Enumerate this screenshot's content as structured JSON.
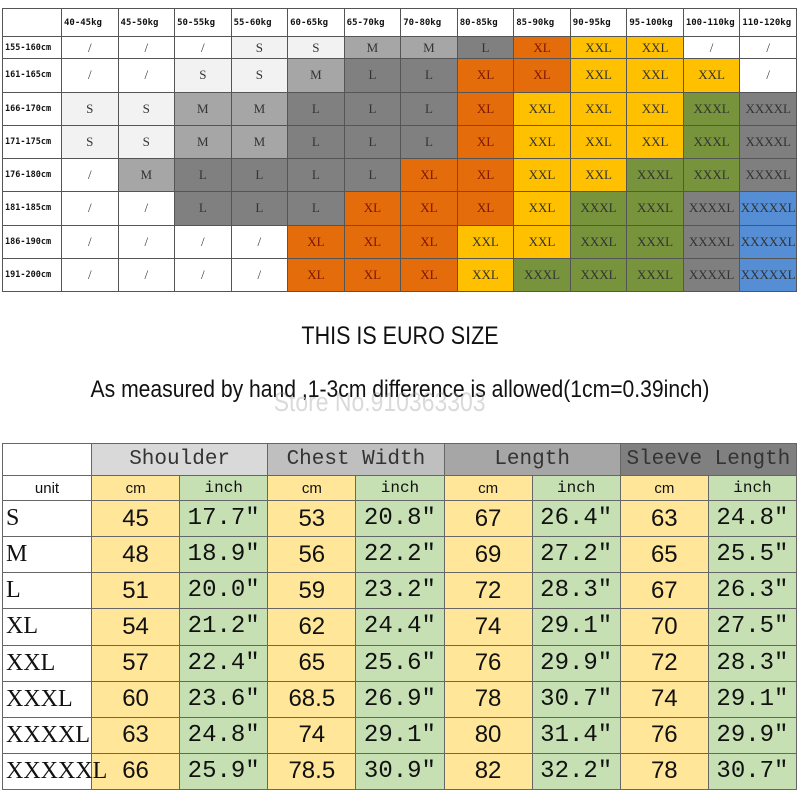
{
  "size_by_height_weight": {
    "weights": [
      "40-45kg",
      "45-50kg",
      "50-55kg",
      "55-60kg",
      "60-65kg",
      "65-70kg",
      "70-80kg",
      "80-85kg",
      "85-90kg",
      "90-95kg",
      "95-100kg",
      "100-110kg",
      "110-120kg"
    ],
    "rows": [
      {
        "height": "155-160cm",
        "cells": [
          "/",
          "/",
          "/",
          "S",
          "S",
          "M",
          "M",
          "L",
          "XL",
          "XXL",
          "XXL",
          "/",
          "/"
        ]
      },
      {
        "height": "161-165cm",
        "cells": [
          "/",
          "/",
          "S",
          "S",
          "M",
          "L",
          "L",
          "XL",
          "XL",
          "XXL",
          "XXL",
          "XXL",
          "/"
        ]
      },
      {
        "height": "166-170cm",
        "cells": [
          "S",
          "S",
          "M",
          "M",
          "L",
          "L",
          "L",
          "XL",
          "XXL",
          "XXL",
          "XXL",
          "XXXL",
          "XXXXL"
        ]
      },
      {
        "height": "171-175cm",
        "cells": [
          "S",
          "S",
          "M",
          "M",
          "L",
          "L",
          "L",
          "XL",
          "XXL",
          "XXL",
          "XXL",
          "XXXL",
          "XXXXL"
        ]
      },
      {
        "height": "176-180cm",
        "cells": [
          "/",
          "M",
          "L",
          "L",
          "L",
          "L",
          "XL",
          "XL",
          "XXL",
          "XXL",
          "XXXL",
          "XXXL",
          "XXXXL"
        ]
      },
      {
        "height": "181-185cm",
        "cells": [
          "/",
          "/",
          "L",
          "L",
          "L",
          "XL",
          "XL",
          "XL",
          "XXL",
          "XXXL",
          "XXXL",
          "XXXXL",
          "XXXXXL"
        ]
      },
      {
        "height": "186-190cm",
        "cells": [
          "/",
          "/",
          "/",
          "/",
          "XL",
          "XL",
          "XL",
          "XXL",
          "XXL",
          "XXXL",
          "XXXL",
          "XXXXL",
          "XXXXXL"
        ]
      },
      {
        "height": "191-200cm",
        "cells": [
          "/",
          "/",
          "/",
          "/",
          "XL",
          "XL",
          "XL",
          "XXL",
          "XXXL",
          "XXXL",
          "XXXL",
          "XXXXL",
          "XXXXXL"
        ]
      }
    ],
    "size_colors": {
      "/": "#ffffff",
      "S": "#f2f2f2",
      "M": "#a6a6a6",
      "L": "#808080",
      "XL": "#e46c0a",
      "XXL": "#ffc000",
      "XXXL": "#77933c",
      "XXXXL": "#7f7f7f",
      "XXXXXL": "#558ed5"
    }
  },
  "title": "THIS IS EURO SIZE",
  "subtitle": "As measured by hand ,1-3cm difference is allowed(1cm=0.39inch)",
  "watermark": "Store No.910363303",
  "measurements": {
    "groups": [
      {
        "label": "Shoulder",
        "color": "#d9d9d9"
      },
      {
        "label": "Chest Width",
        "color": "#bfbfbf"
      },
      {
        "label": "Length",
        "color": "#a6a6a6"
      },
      {
        "label": "Sleeve Length",
        "color": "#808080"
      }
    ],
    "unit_label": "unit",
    "unit_cm": "cm",
    "unit_inch": "inch",
    "rows": [
      {
        "size": "S",
        "values": [
          "45",
          "17.7\"",
          "53",
          "20.8\"",
          "67",
          "26.4\"",
          "63",
          "24.8\""
        ]
      },
      {
        "size": "M",
        "values": [
          "48",
          "18.9\"",
          "56",
          "22.2\"",
          "69",
          "27.2\"",
          "65",
          "25.5\""
        ]
      },
      {
        "size": "L",
        "values": [
          "51",
          "20.0\"",
          "59",
          "23.2\"",
          "72",
          "28.3\"",
          "67",
          "26.3\""
        ]
      },
      {
        "size": "XL",
        "values": [
          "54",
          "21.2\"",
          "62",
          "24.4\"",
          "74",
          "29.1\"",
          "70",
          "27.5\""
        ]
      },
      {
        "size": "XXL",
        "values": [
          "57",
          "22.4\"",
          "65",
          "25.6\"",
          "76",
          "29.9\"",
          "72",
          "28.3\""
        ]
      },
      {
        "size": "XXXL",
        "values": [
          "60",
          "23.6\"",
          "68.5",
          "26.9\"",
          "78",
          "30.7\"",
          "74",
          "29.1\""
        ]
      },
      {
        "size": "XXXXL",
        "values": [
          "63",
          "24.8\"",
          "74",
          "29.1\"",
          "80",
          "31.4\"",
          "76",
          "29.9\""
        ]
      },
      {
        "size": "XXXXXL",
        "values": [
          "66",
          "25.9\"",
          "78.5",
          "30.9\"",
          "82",
          "32.2\"",
          "78",
          "30.7\""
        ]
      }
    ]
  }
}
